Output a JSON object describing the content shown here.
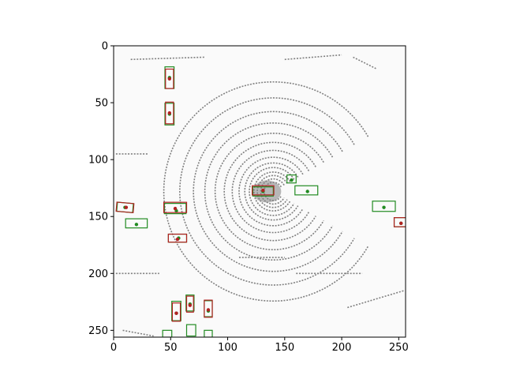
{
  "chart_data": {
    "type": "scatter",
    "title": "",
    "xlabel": "",
    "ylabel": "",
    "xlim": [
      0,
      256
    ],
    "ylim": [
      256,
      0
    ],
    "y_inverted": true,
    "grid": false,
    "xticks": [
      0,
      50,
      100,
      150,
      200,
      250
    ],
    "yticks": [
      0,
      50,
      100,
      150,
      200,
      250
    ],
    "background_points_color": "#808080",
    "lidar_center": [
      140,
      128
    ],
    "lidar_ring_radii": [
      8,
      11,
      14,
      17,
      21,
      25,
      30,
      36,
      43,
      51,
      60,
      70,
      82,
      96
    ],
    "lidar_lines": [
      [
        [
          15,
          12
        ],
        [
          80,
          10
        ]
      ],
      [
        [
          150,
          12
        ],
        [
          200,
          8
        ]
      ],
      [
        [
          210,
          10
        ],
        [
          230,
          20
        ]
      ],
      [
        [
          2,
          95
        ],
        [
          30,
          95
        ]
      ],
      [
        [
          2,
          200
        ],
        [
          40,
          200
        ]
      ],
      [
        [
          110,
          186
        ],
        [
          150,
          186
        ]
      ],
      [
        [
          160,
          200
        ],
        [
          218,
          200
        ]
      ],
      [
        [
          8,
          250
        ],
        [
          35,
          255
        ]
      ],
      [
        [
          205,
          230
        ],
        [
          255,
          215
        ]
      ]
    ],
    "series": [
      {
        "color": "#228B22",
        "boxes": [
          {
            "cx": 49,
            "cy": 28,
            "w": 8,
            "h": 19,
            "angle": 0
          },
          {
            "cx": 49,
            "cy": 60,
            "w": 8,
            "h": 19,
            "angle": 0
          },
          {
            "cx": 10,
            "cy": 142,
            "w": 14,
            "h": 8,
            "angle": 5
          },
          {
            "cx": 20,
            "cy": 156,
            "w": 19,
            "h": 8,
            "angle": 0
          },
          {
            "cx": 54,
            "cy": 143,
            "w": 19,
            "h": 9,
            "angle": 0
          },
          {
            "cx": 56,
            "cy": 169,
            "w": 16,
            "h": 7,
            "angle": 0
          },
          {
            "cx": 131,
            "cy": 128,
            "w": 18,
            "h": 8,
            "angle": 0
          },
          {
            "cx": 156,
            "cy": 117,
            "w": 8,
            "h": 7,
            "angle": 0
          },
          {
            "cx": 169,
            "cy": 127,
            "w": 20,
            "h": 8,
            "angle": 0
          },
          {
            "cx": 237,
            "cy": 141,
            "w": 20,
            "h": 9,
            "angle": 0
          },
          {
            "cx": 252,
            "cy": 155,
            "w": 12,
            "h": 8,
            "angle": 0
          },
          {
            "cx": 55,
            "cy": 233,
            "w": 8,
            "h": 17,
            "angle": 0
          },
          {
            "cx": 67,
            "cy": 226,
            "w": 7,
            "h": 14,
            "angle": 0
          },
          {
            "cx": 83,
            "cy": 231,
            "w": 7,
            "h": 14,
            "angle": 0
          },
          {
            "cx": 68,
            "cy": 250,
            "w": 8,
            "h": 10,
            "angle": 0
          },
          {
            "cx": 47,
            "cy": 253,
            "w": 8,
            "h": 6,
            "angle": 0
          },
          {
            "cx": 83,
            "cy": 253,
            "w": 7,
            "h": 6,
            "angle": 0
          }
        ],
        "markers": [
          [
            49,
            28
          ],
          [
            49,
            60
          ],
          [
            10,
            142
          ],
          [
            20,
            157
          ],
          [
            55,
            145
          ],
          [
            57,
            169
          ],
          [
            131,
            128
          ],
          [
            156,
            118
          ],
          [
            170,
            128
          ],
          [
            237,
            142
          ],
          [
            252,
            156
          ],
          [
            55,
            235
          ],
          [
            67,
            227
          ],
          [
            83,
            233
          ]
        ]
      },
      {
        "color": "#B22222",
        "boxes": [
          {
            "cx": 49,
            "cy": 29,
            "w": 7,
            "h": 17,
            "angle": 0
          },
          {
            "cx": 49,
            "cy": 59,
            "w": 7,
            "h": 19,
            "angle": 0
          },
          {
            "cx": 10,
            "cy": 142,
            "w": 15,
            "h": 8,
            "angle": 5
          },
          {
            "cx": 54,
            "cy": 142,
            "w": 20,
            "h": 9,
            "angle": 0
          },
          {
            "cx": 56,
            "cy": 169,
            "w": 16,
            "h": 7,
            "angle": 0
          },
          {
            "cx": 131,
            "cy": 127,
            "w": 19,
            "h": 8,
            "angle": 0
          },
          {
            "cx": 252,
            "cy": 155,
            "w": 12,
            "h": 8,
            "angle": 0
          },
          {
            "cx": 55,
            "cy": 234,
            "w": 7,
            "h": 16,
            "angle": 0
          },
          {
            "cx": 67,
            "cy": 227,
            "w": 6,
            "h": 14,
            "angle": 0
          },
          {
            "cx": 83,
            "cy": 231,
            "w": 7,
            "h": 15,
            "angle": 0
          }
        ],
        "markers": [
          [
            49,
            29
          ],
          [
            49,
            59
          ],
          [
            11,
            142
          ],
          [
            54,
            143
          ],
          [
            56,
            170
          ],
          [
            131,
            127
          ],
          [
            252,
            156
          ],
          [
            55,
            235
          ],
          [
            67,
            228
          ],
          [
            83,
            232
          ]
        ]
      }
    ]
  }
}
